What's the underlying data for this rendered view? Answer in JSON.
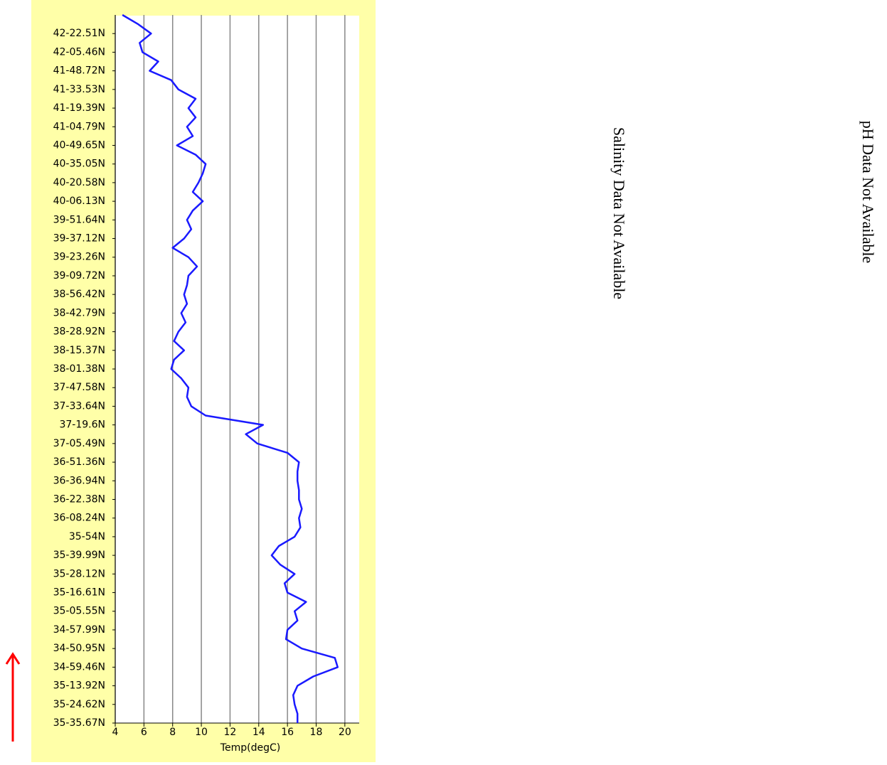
{
  "chart_data": {
    "type": "line",
    "x_label": "Temp(degC)",
    "categories": [
      null,
      null,
      "42-22.51N",
      null,
      "42-05.46N",
      null,
      "41-48.72N",
      null,
      "41-33.53N",
      null,
      "41-19.39N",
      null,
      "41-04.79N",
      null,
      "40-49.65N",
      null,
      "40-35.05N",
      null,
      "40-20.58N",
      null,
      "40-06.13N",
      null,
      "39-51.64N",
      null,
      "39-37.12N",
      null,
      "39-23.26N",
      null,
      "39-09.72N",
      null,
      "38-56.42N",
      null,
      "38-42.79N",
      null,
      "38-28.92N",
      null,
      "38-15.37N",
      null,
      "38-01.38N",
      null,
      "37-47.58N",
      null,
      "37-33.64N",
      null,
      "37-19.6N",
      null,
      "37-05.49N",
      null,
      "36-51.36N",
      null,
      "36-36.94N",
      null,
      "36-22.38N",
      null,
      "36-08.24N",
      null,
      "35-54N",
      null,
      "35-39.99N",
      null,
      "35-28.12N",
      null,
      "35-16.61N",
      null,
      "35-05.55N",
      null,
      "34-57.99N",
      null,
      "34-50.95N",
      null,
      "34-59.46N",
      null,
      "35-13.92N",
      null,
      "35-24.62N",
      null,
      "35-35.67N"
    ],
    "values": [
      4.5,
      5.6,
      6.5,
      5.7,
      5.9,
      7.0,
      6.4,
      7.9,
      8.4,
      9.6,
      9.1,
      9.6,
      9.0,
      9.4,
      8.3,
      9.6,
      10.3,
      10.1,
      9.8,
      9.4,
      10.1,
      9.4,
      9.0,
      9.3,
      8.8,
      8.0,
      9.1,
      9.7,
      9.1,
      9.0,
      8.8,
      9.0,
      8.6,
      8.9,
      8.4,
      8.1,
      8.8,
      8.1,
      7.9,
      8.6,
      9.1,
      9.0,
      9.3,
      10.3,
      14.3,
      13.1,
      13.9,
      16.0,
      16.8,
      16.7,
      16.7,
      16.8,
      16.8,
      17.0,
      16.8,
      16.9,
      16.5,
      15.4,
      14.9,
      15.5,
      16.5,
      15.8,
      16.0,
      17.3,
      16.5,
      16.7,
      16.0,
      15.9,
      17.0,
      19.3,
      19.5,
      17.8,
      16.7,
      16.4,
      16.5,
      16.7,
      16.7
    ],
    "color": "#1a1aff",
    "xlim": [
      4,
      21
    ],
    "xticks": [
      4,
      6,
      8,
      10,
      12,
      14,
      16,
      18,
      20
    ],
    "grid": true,
    "annotations": [
      "Salinity Data Not Available",
      "pH Data Not Available"
    ]
  }
}
